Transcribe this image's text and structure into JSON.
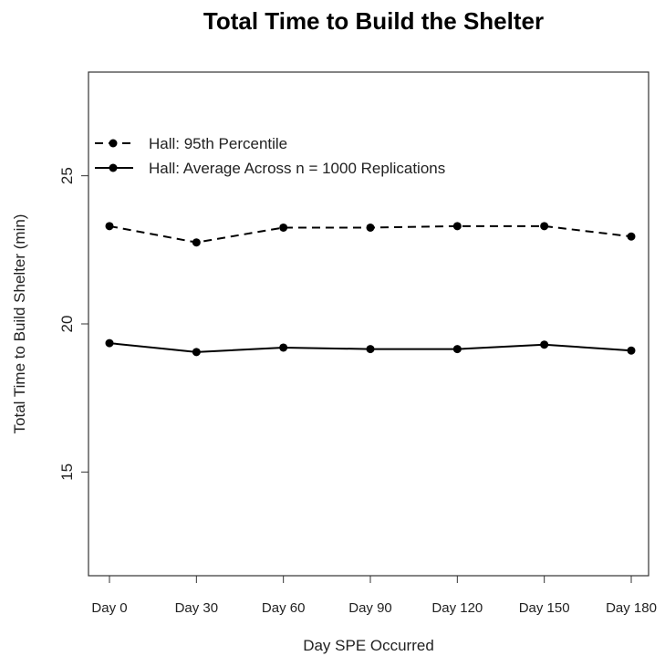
{
  "chart_data": {
    "type": "line",
    "title": "Total Time to Build the Shelter",
    "xlabel": "Day SPE Occurred",
    "ylabel": "Total Time to Build Shelter (min)",
    "categories": [
      "Day 0",
      "Day 30",
      "Day 60",
      "Day 90",
      "Day 120",
      "Day 150",
      "Day 180"
    ],
    "ylim": [
      11.5,
      28.5
    ],
    "yticks": [
      15,
      20,
      25
    ],
    "grid": false,
    "legend_position": "top-left",
    "series": [
      {
        "name": "Hall: 95th Percentile",
        "line_style": "dashed",
        "values": [
          23.3,
          22.75,
          23.25,
          23.25,
          23.3,
          23.3,
          22.95
        ]
      },
      {
        "name": "Hall: Average Across n = 1000 Replications",
        "line_style": "solid",
        "values": [
          19.35,
          19.05,
          19.2,
          19.15,
          19.15,
          19.3,
          19.1
        ]
      }
    ],
    "colors": {
      "series_line": "#000000",
      "axis": "#333333"
    }
  }
}
